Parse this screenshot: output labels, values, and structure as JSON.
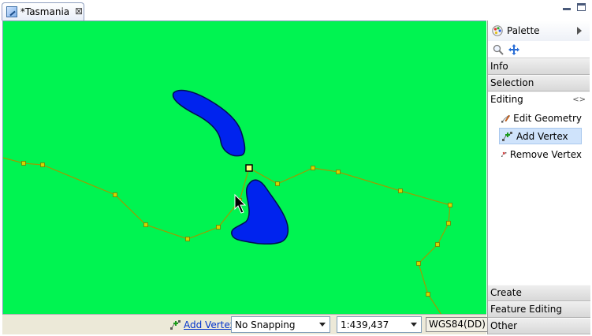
{
  "editor_tab": {
    "title": "*Tasmania",
    "close_icon": "close-icon"
  },
  "window_controls": {
    "minimize_icon": "minimize-icon",
    "maximize_icon": "maximize-icon"
  },
  "map": {
    "background_color": "#00f451",
    "lake_color": "#0023ee",
    "line_color": "#d4d400"
  },
  "statusbar": {
    "active_tool": "Add Vertex",
    "snapping": "No Snapping",
    "scale": "1:439,437",
    "crs": "WGS84(DD)"
  },
  "palette": {
    "title": "Palette",
    "drawers": {
      "info": "Info",
      "selection": "Selection",
      "editing": "Editing",
      "create": "Create",
      "feature_editing": "Feature Editing",
      "other": "Other"
    },
    "editing_items": [
      {
        "label": "Edit Geometry",
        "icon": "edit-geometry-icon"
      },
      {
        "label": "Add Vertex",
        "icon": "add-vertex-icon",
        "selected": true
      },
      {
        "label": "Remove Vertex",
        "icon": "remove-vertex-icon"
      }
    ]
  }
}
